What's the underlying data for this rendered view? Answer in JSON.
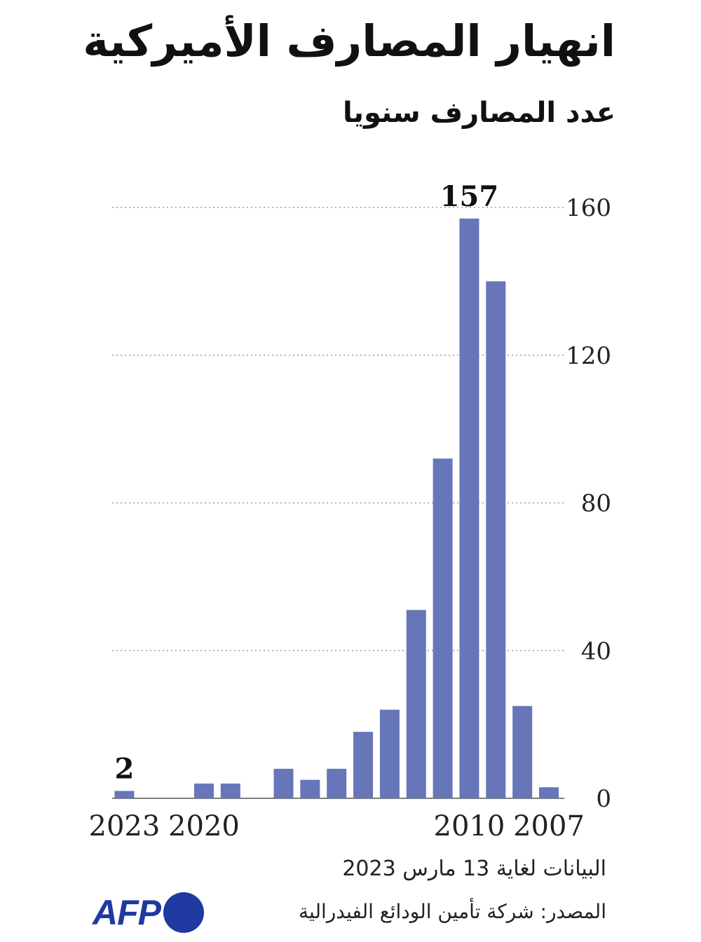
{
  "header": {
    "title": "انهيار المصارف الأميركية",
    "subtitle": "عدد المصارف سنويا"
  },
  "footer": {
    "note": "البيانات لغاية 13 مارس 2023",
    "source": "المصدر: شركة تأمين الودائع الفيدرالية",
    "logo_text": "AFP"
  },
  "chart_data": {
    "type": "bar",
    "title": "انهيار المصارف الأميركية",
    "subtitle": "عدد المصارف سنويا",
    "categories": [
      2007,
      2008,
      2009,
      2010,
      2011,
      2012,
      2013,
      2014,
      2015,
      2016,
      2017,
      2018,
      2019,
      2020,
      2021,
      2022,
      2023
    ],
    "values": [
      3,
      25,
      140,
      157,
      92,
      51,
      24,
      18,
      8,
      5,
      8,
      0,
      4,
      4,
      0,
      0,
      2
    ],
    "x_tick_labels": [
      "2007",
      "2010",
      "2020",
      "2023"
    ],
    "y_ticks": [
      0,
      40,
      80,
      120,
      160
    ],
    "ylim": [
      0,
      160
    ],
    "x_direction": "right-to-left",
    "data_labels": [
      {
        "category": 2010,
        "text": "157"
      },
      {
        "category": 2023,
        "text": "2"
      }
    ],
    "grid": true,
    "bar_color": "#6676b8",
    "grid_color": "#999999"
  }
}
